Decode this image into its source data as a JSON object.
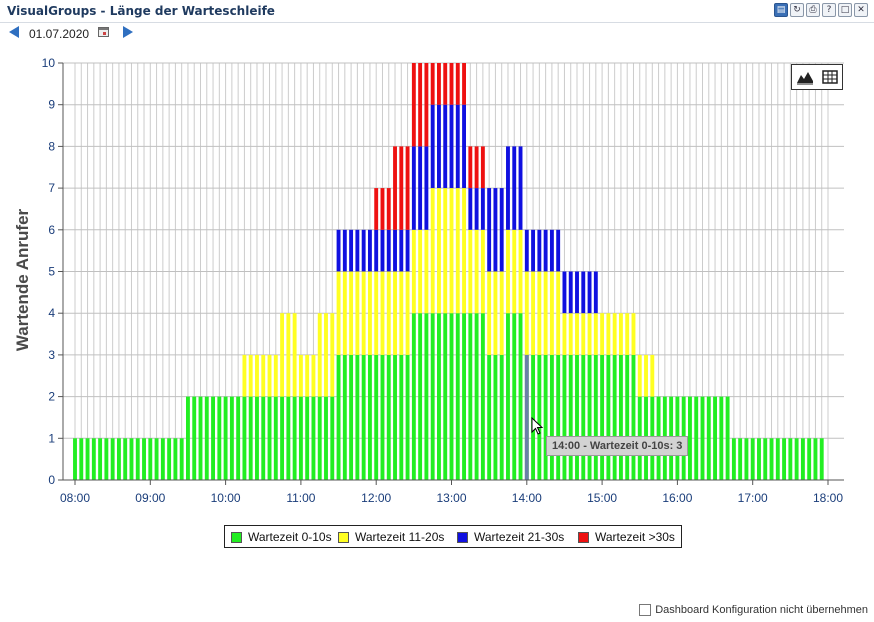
{
  "window": {
    "title": "VisualGroups - Länge der Warteschleife",
    "buttons": [
      "copy-icon",
      "refresh-icon",
      "print-icon",
      "help-icon",
      "maximize-icon",
      "close-icon"
    ]
  },
  "date": {
    "value": "01.07.2020"
  },
  "view_toggle": {
    "icons": [
      "area-chart-icon",
      "table-icon"
    ]
  },
  "tooltip": {
    "text": "14:00 - Wartezeit 0-10s: 3"
  },
  "footer": {
    "checkbox_label": "Dashboard Konfiguration nicht übernehmen",
    "checked": false
  },
  "chart_data": {
    "type": "bar",
    "stacked": true,
    "ylabel": "Wartende Anrufer",
    "ylim": [
      0,
      10
    ],
    "yticks": [
      0,
      1,
      2,
      3,
      4,
      5,
      6,
      7,
      8,
      9,
      10
    ],
    "xlim_hours": [
      8,
      18
    ],
    "xticks": [
      "08:00",
      "09:00",
      "10:00",
      "11:00",
      "12:00",
      "13:00",
      "14:00",
      "15:00",
      "16:00",
      "17:00",
      "18:00"
    ],
    "bin_minutes": 5,
    "grid": true,
    "legend_position": "bottom",
    "highlight": {
      "time": "14:00",
      "series": "Wartezeit 0-10s",
      "color": "#6b7fa8"
    },
    "series": [
      {
        "name": "Wartezeit 0-10s",
        "color": "#22ee22",
        "segments": [
          [
            8.0,
            9.5,
            1
          ],
          [
            9.5,
            11.5,
            2
          ],
          [
            11.5,
            12.5,
            3
          ],
          [
            12.5,
            13.5,
            4
          ],
          [
            13.5,
            13.75,
            3
          ],
          [
            13.75,
            14.0,
            4
          ],
          [
            14.0,
            15.5,
            3
          ],
          [
            15.5,
            16.75,
            2
          ],
          [
            16.75,
            18.0,
            1
          ]
        ]
      },
      {
        "name": "Wartezeit 11-20s",
        "color": "#ffff22",
        "segments": [
          [
            10.25,
            10.75,
            1
          ],
          [
            10.75,
            11.0,
            2
          ],
          [
            11.0,
            11.25,
            1
          ],
          [
            11.25,
            11.5,
            2
          ],
          [
            11.5,
            12.5,
            2
          ],
          [
            12.5,
            12.75,
            2
          ],
          [
            12.75,
            13.25,
            3
          ],
          [
            13.25,
            13.5,
            2
          ],
          [
            13.5,
            13.75,
            2
          ],
          [
            13.75,
            14.0,
            2
          ],
          [
            14.0,
            14.5,
            2
          ],
          [
            14.5,
            15.0,
            1
          ],
          [
            15.0,
            15.5,
            1
          ],
          [
            15.5,
            15.75,
            1
          ]
        ]
      },
      {
        "name": "Wartezeit 21-30s",
        "color": "#1010e0",
        "segments": [
          [
            11.5,
            12.5,
            1
          ],
          [
            12.5,
            12.75,
            2
          ],
          [
            12.75,
            13.25,
            2
          ],
          [
            13.25,
            13.5,
            1
          ],
          [
            13.5,
            13.75,
            2
          ],
          [
            13.75,
            14.0,
            2
          ],
          [
            14.0,
            14.5,
            1
          ],
          [
            14.5,
            15.0,
            1
          ]
        ]
      },
      {
        "name": "Wartezeit >30s",
        "color": "#ee1111",
        "segments": [
          [
            12.0,
            12.25,
            1
          ],
          [
            12.25,
            12.5,
            2
          ],
          [
            12.5,
            12.75,
            2
          ],
          [
            12.75,
            13.25,
            1
          ],
          [
            13.25,
            13.5,
            1
          ]
        ]
      }
    ]
  }
}
